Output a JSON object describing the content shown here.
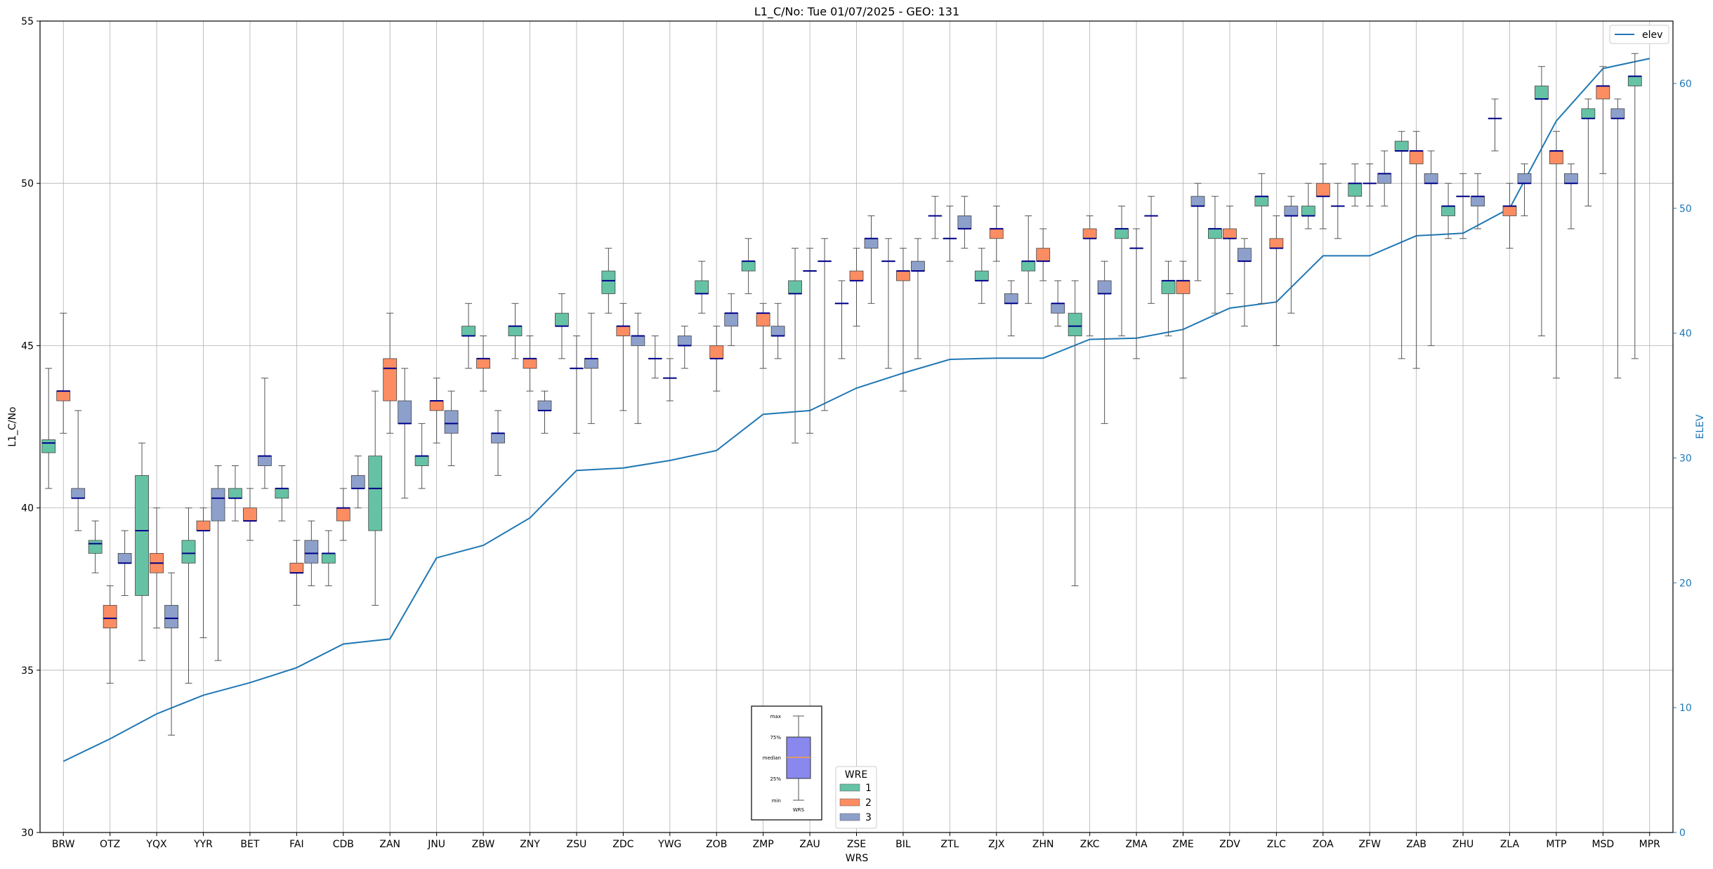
{
  "chart_data": {
    "type": "box",
    "title": "L1_C/No: Tue 01/07/2025 - GEO: 131",
    "xlabel": "WRS",
    "ylabel": "L1_C/No",
    "ylabel_right": "ELEV",
    "ylim": [
      30,
      55
    ],
    "ylim_right": [
      0,
      65
    ],
    "yticks": [
      "30",
      "35",
      "40",
      "45",
      "50",
      "55"
    ],
    "yticks_right": [
      "0",
      "10",
      "20",
      "30",
      "40",
      "50",
      "60"
    ],
    "grid": true,
    "categories": [
      "BRW",
      "OTZ",
      "YQX",
      "YYR",
      "BET",
      "FAI",
      "CDB",
      "ZAN",
      "JNU",
      "ZBW",
      "ZNY",
      "ZSU",
      "ZDC",
      "YWG",
      "ZOB",
      "ZMP",
      "ZAU",
      "ZSE",
      "BIL",
      "ZTL",
      "ZJX",
      "ZHN",
      "ZKC",
      "ZMA",
      "ZME",
      "ZDV",
      "ZLC",
      "ZOA",
      "ZFW",
      "ZAB",
      "ZHU",
      "ZLA",
      "MTP",
      "MSD",
      "MPR"
    ],
    "legend_wre": {
      "title": "WRE",
      "entries": [
        {
          "label": "1",
          "color": "#66c2a5"
        },
        {
          "label": "2",
          "color": "#fc8d62"
        },
        {
          "label": "3",
          "color": "#8da0cb"
        }
      ]
    },
    "legend_line": {
      "label": "elev",
      "color": "#1f77b4"
    },
    "key": {
      "labels": [
        "max",
        "75%",
        "median",
        "25%",
        "min"
      ],
      "xlabel": "WRS"
    },
    "elev": [
      5.7,
      7.5,
      9.5,
      11,
      12,
      13.2,
      15.1,
      15.5,
      22,
      23,
      25.2,
      29,
      29.2,
      29.8,
      30.6,
      33.5,
      33.8,
      35.6,
      36.8,
      37.9,
      38,
      38,
      39.5,
      39.6,
      40.3,
      42,
      42.5,
      46.2,
      46.2,
      47.8,
      48,
      50,
      57,
      61.2,
      62
    ],
    "boxes": [
      {
        "wrs": "BRW",
        "wre": 1,
        "min": 40.6,
        "q1": 41.7,
        "median": 42.0,
        "q3": 42.1,
        "max": 44.3
      },
      {
        "wrs": "BRW",
        "wre": 2,
        "min": 42.3,
        "q1": 43.3,
        "median": 43.6,
        "q3": 43.6,
        "max": 46.0
      },
      {
        "wrs": "BRW",
        "wre": 3,
        "min": 39.3,
        "q1": 40.3,
        "median": 40.3,
        "q3": 40.6,
        "max": 43.0
      },
      {
        "wrs": "OTZ",
        "wre": 1,
        "min": 38.0,
        "q1": 38.6,
        "median": 38.9,
        "q3": 39.0,
        "max": 39.6
      },
      {
        "wrs": "OTZ",
        "wre": 2,
        "min": 34.6,
        "q1": 36.3,
        "median": 36.6,
        "q3": 37.0,
        "max": 37.6
      },
      {
        "wrs": "OTZ",
        "wre": 3,
        "min": 37.3,
        "q1": 38.3,
        "median": 38.3,
        "q3": 38.6,
        "max": 39.3
      },
      {
        "wrs": "YQX",
        "wre": 1,
        "min": 35.3,
        "q1": 37.3,
        "median": 39.3,
        "q3": 41.0,
        "max": 42.0
      },
      {
        "wrs": "YQX",
        "wre": 2,
        "min": 36.3,
        "q1": 38.0,
        "median": 38.3,
        "q3": 38.6,
        "max": 40.0
      },
      {
        "wrs": "YQX",
        "wre": 3,
        "min": 33.0,
        "q1": 36.3,
        "median": 36.6,
        "q3": 37.0,
        "max": 38.0
      },
      {
        "wrs": "YYR",
        "wre": 1,
        "min": 34.6,
        "q1": 38.3,
        "median": 38.6,
        "q3": 39.0,
        "max": 40.0
      },
      {
        "wrs": "YYR",
        "wre": 2,
        "min": 36.0,
        "q1": 39.3,
        "median": 39.3,
        "q3": 39.6,
        "max": 40.0
      },
      {
        "wrs": "YYR",
        "wre": 3,
        "min": 35.3,
        "q1": 39.6,
        "median": 40.3,
        "q3": 40.6,
        "max": 41.3
      },
      {
        "wrs": "BET",
        "wre": 1,
        "min": 39.6,
        "q1": 40.3,
        "median": 40.3,
        "q3": 40.6,
        "max": 41.3
      },
      {
        "wrs": "BET",
        "wre": 2,
        "min": 39.0,
        "q1": 39.6,
        "median": 39.6,
        "q3": 40.0,
        "max": 40.6
      },
      {
        "wrs": "BET",
        "wre": 3,
        "min": 40.6,
        "q1": 41.3,
        "median": 41.6,
        "q3": 41.6,
        "max": 44.0
      },
      {
        "wrs": "FAI",
        "wre": 1,
        "min": 39.6,
        "q1": 40.3,
        "median": 40.6,
        "q3": 40.6,
        "max": 41.3
      },
      {
        "wrs": "FAI",
        "wre": 2,
        "min": 37.0,
        "q1": 38.0,
        "median": 38.0,
        "q3": 38.3,
        "max": 39.0
      },
      {
        "wrs": "FAI",
        "wre": 3,
        "min": 37.6,
        "q1": 38.3,
        "median": 38.6,
        "q3": 39.0,
        "max": 39.6
      },
      {
        "wrs": "CDB",
        "wre": 1,
        "min": 37.6,
        "q1": 38.3,
        "median": 38.6,
        "q3": 38.6,
        "max": 39.3
      },
      {
        "wrs": "CDB",
        "wre": 2,
        "min": 39.0,
        "q1": 39.6,
        "median": 40.0,
        "q3": 40.0,
        "max": 40.6
      },
      {
        "wrs": "CDB",
        "wre": 3,
        "min": 40.0,
        "q1": 40.6,
        "median": 40.6,
        "q3": 41.0,
        "max": 41.6
      },
      {
        "wrs": "ZAN",
        "wre": 1,
        "min": 37.0,
        "q1": 39.3,
        "median": 40.6,
        "q3": 41.6,
        "max": 43.6
      },
      {
        "wrs": "ZAN",
        "wre": 2,
        "min": 42.3,
        "q1": 43.3,
        "median": 44.3,
        "q3": 44.6,
        "max": 46.0
      },
      {
        "wrs": "ZAN",
        "wre": 3,
        "min": 40.3,
        "q1": 42.6,
        "median": 42.6,
        "q3": 43.3,
        "max": 44.3
      },
      {
        "wrs": "JNU",
        "wre": 1,
        "min": 40.6,
        "q1": 41.3,
        "median": 41.6,
        "q3": 41.6,
        "max": 42.6
      },
      {
        "wrs": "JNU",
        "wre": 2,
        "min": 42.0,
        "q1": 43.0,
        "median": 43.3,
        "q3": 43.3,
        "max": 44.0
      },
      {
        "wrs": "JNU",
        "wre": 3,
        "min": 41.3,
        "q1": 42.3,
        "median": 42.6,
        "q3": 43.0,
        "max": 43.6
      },
      {
        "wrs": "ZBW",
        "wre": 1,
        "min": 44.3,
        "q1": 45.3,
        "median": 45.3,
        "q3": 45.6,
        "max": 46.3
      },
      {
        "wrs": "ZBW",
        "wre": 2,
        "min": 43.6,
        "q1": 44.3,
        "median": 44.6,
        "q3": 44.6,
        "max": 45.3
      },
      {
        "wrs": "ZBW",
        "wre": 3,
        "min": 41.0,
        "q1": 42.0,
        "median": 42.3,
        "q3": 42.3,
        "max": 43.0
      },
      {
        "wrs": "ZNY",
        "wre": 1,
        "min": 44.6,
        "q1": 45.3,
        "median": 45.6,
        "q3": 45.6,
        "max": 46.3
      },
      {
        "wrs": "ZNY",
        "wre": 2,
        "min": 43.6,
        "q1": 44.3,
        "median": 44.6,
        "q3": 44.6,
        "max": 45.3
      },
      {
        "wrs": "ZNY",
        "wre": 3,
        "min": 42.3,
        "q1": 43.0,
        "median": 43.0,
        "q3": 43.3,
        "max": 43.6
      },
      {
        "wrs": "ZSU",
        "wre": 1,
        "min": 44.6,
        "q1": 45.6,
        "median": 45.6,
        "q3": 46.0,
        "max": 46.6
      },
      {
        "wrs": "ZSU",
        "wre": 2,
        "min": 42.3,
        "q1": 44.3,
        "median": 44.3,
        "q3": 44.3,
        "max": 45.3
      },
      {
        "wrs": "ZSU",
        "wre": 3,
        "min": 42.6,
        "q1": 44.3,
        "median": 44.6,
        "q3": 44.6,
        "max": 46.0
      },
      {
        "wrs": "ZDC",
        "wre": 1,
        "min": 46.0,
        "q1": 46.6,
        "median": 47.0,
        "q3": 47.3,
        "max": 48.0
      },
      {
        "wrs": "ZDC",
        "wre": 2,
        "min": 43.0,
        "q1": 45.3,
        "median": 45.6,
        "q3": 45.6,
        "max": 46.3
      },
      {
        "wrs": "ZDC",
        "wre": 3,
        "min": 42.6,
        "q1": 45.0,
        "median": 45.3,
        "q3": 45.3,
        "max": 46.0
      },
      {
        "wrs": "YWG",
        "wre": 1,
        "min": 44.0,
        "q1": 44.6,
        "median": 44.6,
        "q3": 44.6,
        "max": 45.3
      },
      {
        "wrs": "YWG",
        "wre": 2,
        "min": 43.3,
        "q1": 44.0,
        "median": 44.0,
        "q3": 44.0,
        "max": 44.6
      },
      {
        "wrs": "YWG",
        "wre": 3,
        "min": 44.3,
        "q1": 45.0,
        "median": 45.0,
        "q3": 45.3,
        "max": 45.6
      },
      {
        "wrs": "ZOB",
        "wre": 1,
        "min": 46.0,
        "q1": 46.6,
        "median": 46.6,
        "q3": 47.0,
        "max": 47.6
      },
      {
        "wrs": "ZOB",
        "wre": 2,
        "min": 43.6,
        "q1": 44.6,
        "median": 44.6,
        "q3": 45.0,
        "max": 45.6
      },
      {
        "wrs": "ZOB",
        "wre": 3,
        "min": 45.0,
        "q1": 45.6,
        "median": 46.0,
        "q3": 46.0,
        "max": 46.6
      },
      {
        "wrs": "ZMP",
        "wre": 1,
        "min": 46.6,
        "q1": 47.3,
        "median": 47.6,
        "q3": 47.6,
        "max": 48.3
      },
      {
        "wrs": "ZMP",
        "wre": 2,
        "min": 44.3,
        "q1": 45.6,
        "median": 46.0,
        "q3": 46.0,
        "max": 46.3
      },
      {
        "wrs": "ZMP",
        "wre": 3,
        "min": 44.6,
        "q1": 45.3,
        "median": 45.3,
        "q3": 45.6,
        "max": 46.3
      },
      {
        "wrs": "ZAU",
        "wre": 1,
        "min": 42.0,
        "q1": 46.6,
        "median": 46.6,
        "q3": 47.0,
        "max": 48.0
      },
      {
        "wrs": "ZAU",
        "wre": 2,
        "min": 42.3,
        "q1": 47.3,
        "median": 47.3,
        "q3": 47.3,
        "max": 48.0
      },
      {
        "wrs": "ZAU",
        "wre": 3,
        "min": 43.0,
        "q1": 47.6,
        "median": 47.6,
        "q3": 47.6,
        "max": 48.3
      },
      {
        "wrs": "ZSE",
        "wre": 1,
        "min": 44.6,
        "q1": 46.3,
        "median": 46.3,
        "q3": 46.3,
        "max": 47.0
      },
      {
        "wrs": "ZSE",
        "wre": 2,
        "min": 45.6,
        "q1": 47.0,
        "median": 47.0,
        "q3": 47.3,
        "max": 48.0
      },
      {
        "wrs": "ZSE",
        "wre": 3,
        "min": 46.3,
        "q1": 48.0,
        "median": 48.3,
        "q3": 48.3,
        "max": 49.0
      },
      {
        "wrs": "BIL",
        "wre": 1,
        "min": 44.3,
        "q1": 47.6,
        "median": 47.6,
        "q3": 47.6,
        "max": 48.3
      },
      {
        "wrs": "BIL",
        "wre": 2,
        "min": 43.6,
        "q1": 47.0,
        "median": 47.3,
        "q3": 47.3,
        "max": 48.0
      },
      {
        "wrs": "BIL",
        "wre": 3,
        "min": 44.6,
        "q1": 47.3,
        "median": 47.3,
        "q3": 47.6,
        "max": 48.3
      },
      {
        "wrs": "ZTL",
        "wre": 1,
        "min": 48.3,
        "q1": 49.0,
        "median": 49.0,
        "q3": 49.0,
        "max": 49.6
      },
      {
        "wrs": "ZTL",
        "wre": 2,
        "min": 47.6,
        "q1": 48.3,
        "median": 48.3,
        "q3": 48.3,
        "max": 49.3
      },
      {
        "wrs": "ZTL",
        "wre": 3,
        "min": 48.0,
        "q1": 48.6,
        "median": 48.6,
        "q3": 49.0,
        "max": 49.6
      },
      {
        "wrs": "ZJX",
        "wre": 1,
        "min": 46.3,
        "q1": 47.0,
        "median": 47.0,
        "q3": 47.3,
        "max": 48.0
      },
      {
        "wrs": "ZJX",
        "wre": 2,
        "min": 47.6,
        "q1": 48.3,
        "median": 48.6,
        "q3": 48.6,
        "max": 49.3
      },
      {
        "wrs": "ZJX",
        "wre": 3,
        "min": 45.3,
        "q1": 46.3,
        "median": 46.3,
        "q3": 46.6,
        "max": 47.0
      },
      {
        "wrs": "ZHN",
        "wre": 1,
        "min": 46.3,
        "q1": 47.3,
        "median": 47.6,
        "q3": 47.6,
        "max": 49.0
      },
      {
        "wrs": "ZHN",
        "wre": 2,
        "min": 47.0,
        "q1": 47.6,
        "median": 47.6,
        "q3": 48.0,
        "max": 48.6
      },
      {
        "wrs": "ZHN",
        "wre": 3,
        "min": 45.6,
        "q1": 46.0,
        "median": 46.3,
        "q3": 46.3,
        "max": 47.0
      },
      {
        "wrs": "ZKC",
        "wre": 1,
        "min": 37.6,
        "q1": 45.3,
        "median": 45.6,
        "q3": 46.0,
        "max": 47.0
      },
      {
        "wrs": "ZKC",
        "wre": 2,
        "min": 45.3,
        "q1": 48.3,
        "median": 48.3,
        "q3": 48.6,
        "max": 49.0
      },
      {
        "wrs": "ZKC",
        "wre": 3,
        "min": 42.6,
        "q1": 46.6,
        "median": 46.6,
        "q3": 47.0,
        "max": 47.6
      },
      {
        "wrs": "ZMA",
        "wre": 1,
        "min": 45.3,
        "q1": 48.3,
        "median": 48.6,
        "q3": 48.6,
        "max": 49.3
      },
      {
        "wrs": "ZMA",
        "wre": 2,
        "min": 44.6,
        "q1": 48.0,
        "median": 48.0,
        "q3": 48.0,
        "max": 48.6
      },
      {
        "wrs": "ZMA",
        "wre": 3,
        "min": 46.3,
        "q1": 49.0,
        "median": 49.0,
        "q3": 49.0,
        "max": 49.6
      },
      {
        "wrs": "ZME",
        "wre": 1,
        "min": 45.3,
        "q1": 46.6,
        "median": 47.0,
        "q3": 47.0,
        "max": 47.6
      },
      {
        "wrs": "ZME",
        "wre": 2,
        "min": 44.0,
        "q1": 46.6,
        "median": 47.0,
        "q3": 47.0,
        "max": 47.6
      },
      {
        "wrs": "ZME",
        "wre": 3,
        "min": 47.0,
        "q1": 49.3,
        "median": 49.3,
        "q3": 49.6,
        "max": 50.0
      },
      {
        "wrs": "ZDV",
        "wre": 1,
        "min": 46.0,
        "q1": 48.3,
        "median": 48.6,
        "q3": 48.6,
        "max": 49.6
      },
      {
        "wrs": "ZDV",
        "wre": 2,
        "min": 46.6,
        "q1": 48.3,
        "median": 48.3,
        "q3": 48.6,
        "max": 49.3
      },
      {
        "wrs": "ZDV",
        "wre": 3,
        "min": 45.6,
        "q1": 47.6,
        "median": 47.6,
        "q3": 48.0,
        "max": 48.3
      },
      {
        "wrs": "ZLC",
        "wre": 1,
        "min": 46.3,
        "q1": 49.3,
        "median": 49.6,
        "q3": 49.6,
        "max": 50.3
      },
      {
        "wrs": "ZLC",
        "wre": 2,
        "min": 45.0,
        "q1": 48.0,
        "median": 48.0,
        "q3": 48.3,
        "max": 49.0
      },
      {
        "wrs": "ZLC",
        "wre": 3,
        "min": 46.0,
        "q1": 49.0,
        "median": 49.0,
        "q3": 49.3,
        "max": 49.6
      },
      {
        "wrs": "ZOA",
        "wre": 1,
        "min": 48.6,
        "q1": 49.0,
        "median": 49.0,
        "q3": 49.3,
        "max": 50.0
      },
      {
        "wrs": "ZOA",
        "wre": 2,
        "min": 48.6,
        "q1": 49.6,
        "median": 49.6,
        "q3": 50.0,
        "max": 50.6
      },
      {
        "wrs": "ZOA",
        "wre": 3,
        "min": 48.3,
        "q1": 49.3,
        "median": 49.3,
        "q3": 49.3,
        "max": 50.0
      },
      {
        "wrs": "ZFW",
        "wre": 1,
        "min": 49.3,
        "q1": 49.6,
        "median": 50.0,
        "q3": 50.0,
        "max": 50.6
      },
      {
        "wrs": "ZFW",
        "wre": 2,
        "min": 49.3,
        "q1": 50.0,
        "median": 50.0,
        "q3": 50.0,
        "max": 50.6
      },
      {
        "wrs": "ZFW",
        "wre": 3,
        "min": 49.3,
        "q1": 50.0,
        "median": 50.3,
        "q3": 50.3,
        "max": 51.0
      },
      {
        "wrs": "ZAB",
        "wre": 1,
        "min": 44.6,
        "q1": 51.0,
        "median": 51.0,
        "q3": 51.3,
        "max": 51.6
      },
      {
        "wrs": "ZAB",
        "wre": 2,
        "min": 44.3,
        "q1": 50.6,
        "median": 51.0,
        "q3": 51.0,
        "max": 51.6
      },
      {
        "wrs": "ZAB",
        "wre": 3,
        "min": 45.0,
        "q1": 50.0,
        "median": 50.0,
        "q3": 50.3,
        "max": 51.0
      },
      {
        "wrs": "ZHU",
        "wre": 1,
        "min": 48.3,
        "q1": 49.0,
        "median": 49.3,
        "q3": 49.3,
        "max": 50.0
      },
      {
        "wrs": "ZHU",
        "wre": 2,
        "min": 48.3,
        "q1": 49.6,
        "median": 49.6,
        "q3": 49.6,
        "max": 50.3
      },
      {
        "wrs": "ZHU",
        "wre": 3,
        "min": 48.6,
        "q1": 49.3,
        "median": 49.6,
        "q3": 49.6,
        "max": 50.3
      },
      {
        "wrs": "ZLA",
        "wre": 1,
        "min": 51.0,
        "q1": 52.0,
        "median": 52.0,
        "q3": 52.0,
        "max": 52.6
      },
      {
        "wrs": "ZLA",
        "wre": 2,
        "min": 48.0,
        "q1": 49.0,
        "median": 49.3,
        "q3": 49.3,
        "max": 50.0
      },
      {
        "wrs": "ZLA",
        "wre": 3,
        "min": 49.0,
        "q1": 50.0,
        "median": 50.0,
        "q3": 50.3,
        "max": 50.6
      },
      {
        "wrs": "MTP",
        "wre": 1,
        "min": 45.3,
        "q1": 52.6,
        "median": 52.6,
        "q3": 53.0,
        "max": 53.6
      },
      {
        "wrs": "MTP",
        "wre": 2,
        "min": 44.0,
        "q1": 50.6,
        "median": 51.0,
        "q3": 51.0,
        "max": 51.6
      },
      {
        "wrs": "MTP",
        "wre": 3,
        "min": 48.6,
        "q1": 50.0,
        "median": 50.0,
        "q3": 50.3,
        "max": 50.6
      },
      {
        "wrs": "MSD",
        "wre": 1,
        "min": 49.3,
        "q1": 52.0,
        "median": 52.0,
        "q3": 52.3,
        "max": 52.6
      },
      {
        "wrs": "MSD",
        "wre": 2,
        "min": 50.3,
        "q1": 52.6,
        "median": 53.0,
        "q3": 53.0,
        "max": 53.6
      },
      {
        "wrs": "MSD",
        "wre": 3,
        "min": 44.0,
        "q1": 52.0,
        "median": 52.0,
        "q3": 52.3,
        "max": 52.6
      },
      {
        "wrs": "MPR",
        "wre": 1,
        "min": 44.6,
        "q1": 53.0,
        "median": 53.3,
        "q3": 53.3,
        "max": 54.0
      }
    ]
  }
}
